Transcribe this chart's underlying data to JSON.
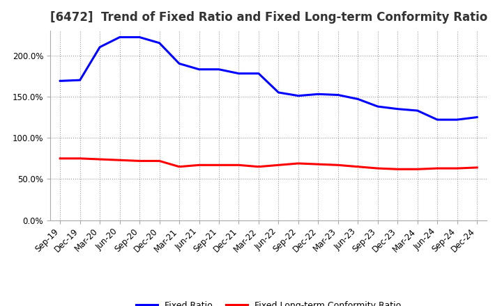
{
  "title": "[6472]  Trend of Fixed Ratio and Fixed Long-term Conformity Ratio",
  "x_labels": [
    "Sep-19",
    "Dec-19",
    "Mar-20",
    "Jun-20",
    "Sep-20",
    "Dec-20",
    "Mar-21",
    "Jun-21",
    "Sep-21",
    "Dec-21",
    "Mar-22",
    "Jun-22",
    "Sep-22",
    "Dec-22",
    "Mar-23",
    "Jun-23",
    "Sep-23",
    "Dec-23",
    "Mar-24",
    "Jun-24",
    "Sep-24",
    "Dec-24"
  ],
  "fixed_ratio": [
    169,
    170,
    210,
    222,
    222,
    215,
    190,
    183,
    183,
    178,
    178,
    155,
    151,
    153,
    152,
    147,
    138,
    135,
    133,
    122,
    122,
    125
  ],
  "fixed_lt_ratio": [
    75,
    75,
    74,
    73,
    72,
    72,
    65,
    67,
    67,
    67,
    65,
    67,
    69,
    68,
    67,
    65,
    63,
    62,
    62,
    63,
    63,
    64
  ],
  "fixed_ratio_color": "#0000FF",
  "fixed_lt_color": "#FF0000",
  "ylim": [
    0,
    230
  ],
  "yticks": [
    0,
    50,
    100,
    150,
    200
  ],
  "ytick_labels": [
    "0.0%",
    "50.0%",
    "100.0%",
    "150.0%",
    "200.0%"
  ],
  "bg_color": "#FFFFFF",
  "plot_bg_color": "#FFFFFF",
  "grid_color": "#999999",
  "legend_fixed": "Fixed Ratio",
  "legend_lt": "Fixed Long-term Conformity Ratio",
  "title_fontsize": 12,
  "tick_fontsize": 8.5,
  "line_width": 2.2
}
